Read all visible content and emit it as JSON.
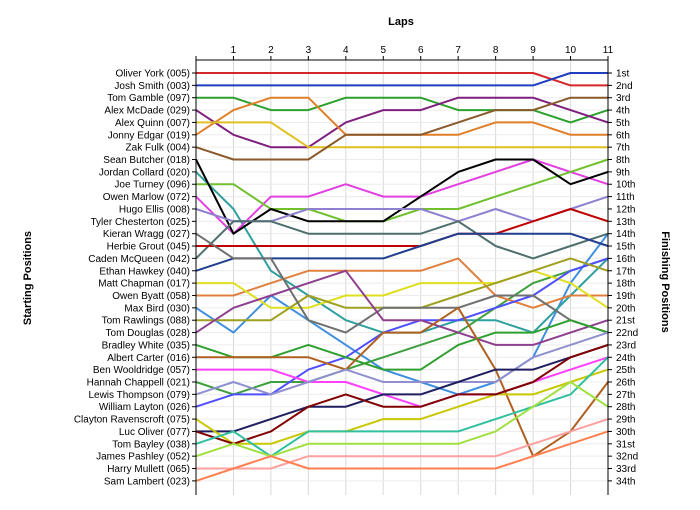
{
  "chart_data": {
    "type": "line",
    "title": "",
    "xlabel": "Laps",
    "ylabel_left": "Starting Positions",
    "ylabel_right": "Finishing Positions",
    "x": [
      0,
      1,
      2,
      3,
      4,
      5,
      6,
      7,
      8,
      9,
      10,
      11
    ],
    "x_tick_labels": [
      "1",
      "2",
      "3",
      "4",
      "5",
      "6",
      "7",
      "8",
      "9",
      "10",
      "11"
    ],
    "ylim": [
      1,
      34
    ],
    "grid": true,
    "starting_labels": [
      "Oliver York (005)",
      "Josh Smith (003)",
      "Tom Gamble (097)",
      "Alex McDade (029)",
      "Alex Quinn (007)",
      "Jonny Edgar (019)",
      "Zak Fulk (004)",
      "Sean Butcher (018)",
      "Jordan Collard (020)",
      "Joe Turney (096)",
      "Owen Marlow (072)",
      "Hugo Ellis (008)",
      "Tyler Chesterton (025)",
      "Kieran Wragg (027)",
      "Herbie Grout (045)",
      "Caden McQueen (042)",
      "Ethan Hawkey (040)",
      "Matt Chapman (017)",
      "Owen Byatt (058)",
      "Max Bird (030)",
      "Tom Rawlings (088)",
      "Tom Douglas (028)",
      "Bradley White (035)",
      "Albert Carter (016)",
      "Ben Wooldridge (057)",
      "Hannah Chappell (021)",
      "Lewis Thompson (079)",
      "William Layton (026)",
      "Clayton Ravenscroft (075)",
      "Luc Oliver (077)",
      "Tom Bayley (038)",
      "James Pashley (052)",
      "Harry Mullett (065)",
      "Sam Lambert (023)"
    ],
    "finishing_labels": [
      "1st",
      "2nd",
      "3rd",
      "4th",
      "5th",
      "6th",
      "7th",
      "8th",
      "9th",
      "10th",
      "11th",
      "12th",
      "13th",
      "14th",
      "15th",
      "16th",
      "17th",
      "18th",
      "19th",
      "20th",
      "21st",
      "22nd",
      "23rd",
      "24th",
      "25th",
      "26th",
      "27th",
      "28th",
      "29th",
      "30th",
      "31st",
      "32nd",
      "33rd",
      "34th"
    ],
    "series": [
      {
        "color": "#d62728",
        "values": [
          1,
          1,
          1,
          1,
          1,
          1,
          1,
          1,
          1,
          1,
          2,
          2
        ]
      },
      {
        "color": "#1f3fbf",
        "values": [
          2,
          2,
          2,
          2,
          2,
          2,
          2,
          2,
          2,
          2,
          1,
          1
        ]
      },
      {
        "color": "#2ca02c",
        "values": [
          3,
          3,
          4,
          4,
          3,
          3,
          3,
          4,
          4,
          4,
          5,
          4
        ]
      },
      {
        "color": "#7f1f7f",
        "values": [
          4,
          6,
          7,
          7,
          5,
          4,
          4,
          3,
          3,
          3,
          4,
          5
        ]
      },
      {
        "color": "#e07f2a",
        "values": [
          6,
          4,
          3,
          3,
          6,
          6,
          6,
          6,
          5,
          5,
          6,
          6
        ]
      },
      {
        "color": "#e0c020",
        "values": [
          5,
          5,
          5,
          7,
          7,
          7,
          7,
          7,
          7,
          7,
          7,
          7
        ]
      },
      {
        "color": "#3f8fdf",
        "values": [
          20,
          22,
          19,
          21,
          23,
          25,
          26,
          27,
          26,
          24,
          18,
          14
        ]
      },
      {
        "color": "#8b5a2b",
        "values": [
          7,
          8,
          8,
          8,
          6,
          6,
          6,
          5,
          4,
          4,
          3,
          3
        ]
      },
      {
        "color": "#2f9f9f",
        "values": [
          9,
          12,
          17,
          19,
          21,
          22,
          22,
          21,
          21,
          22,
          19,
          16
        ]
      },
      {
        "color": "#e040e0",
        "values": [
          11,
          14,
          11,
          11,
          10,
          11,
          11,
          10,
          9,
          8,
          9,
          10
        ]
      },
      {
        "color": "#70c030",
        "values": [
          10,
          10,
          12,
          12,
          13,
          13,
          12,
          12,
          11,
          10,
          9,
          8
        ]
      },
      {
        "color": "#000000",
        "values": [
          8,
          14,
          12,
          13,
          13,
          13,
          11,
          9,
          8,
          8,
          10,
          9
        ]
      },
      {
        "color": "#9080d0",
        "values": [
          12,
          13,
          13,
          12,
          12,
          12,
          12,
          13,
          12,
          13,
          12,
          11
        ]
      },
      {
        "color": "#4f6f6f",
        "values": [
          16,
          13,
          13,
          14,
          14,
          14,
          14,
          13,
          15,
          16,
          15,
          14
        ]
      },
      {
        "color": "#c00000",
        "values": [
          15,
          15,
          15,
          15,
          15,
          15,
          15,
          14,
          14,
          13,
          12,
          13
        ]
      },
      {
        "color": "#1f3f8f",
        "values": [
          17,
          16,
          16,
          16,
          16,
          16,
          15,
          14,
          14,
          14,
          14,
          15
        ]
      },
      {
        "color": "#3f9f3f",
        "values": [
          26,
          27,
          26,
          26,
          25,
          24,
          23,
          22,
          20,
          18,
          17,
          16
        ]
      },
      {
        "color": "#e08040",
        "values": [
          19,
          19,
          18,
          17,
          17,
          17,
          17,
          16,
          19,
          20,
          19,
          19
        ]
      },
      {
        "color": "#dfdf20",
        "values": [
          18,
          18,
          20,
          20,
          19,
          19,
          18,
          18,
          18,
          17,
          18,
          20
        ]
      },
      {
        "color": "#4f4fff",
        "values": [
          28,
          27,
          27,
          25,
          24,
          22,
          21,
          21,
          20,
          19,
          17,
          16
        ]
      },
      {
        "color": "#a0a020",
        "values": [
          21,
          21,
          21,
          19,
          20,
          20,
          20,
          19,
          18,
          17,
          16,
          17
        ]
      },
      {
        "color": "#707070",
        "values": [
          14,
          16,
          16,
          21,
          22,
          20,
          20,
          20,
          19,
          19,
          21,
          22
        ]
      },
      {
        "color": "#8f3f8f",
        "values": [
          22,
          20,
          19,
          18,
          17,
          21,
          21,
          22,
          23,
          23,
          22,
          21
        ]
      },
      {
        "color": "#2fa02f",
        "values": [
          23,
          24,
          24,
          23,
          24,
          25,
          25,
          23,
          22,
          22,
          21,
          22
        ]
      },
      {
        "color": "#b06020",
        "values": [
          24,
          24,
          24,
          24,
          25,
          22,
          22,
          20,
          25,
          32,
          30,
          26
        ]
      },
      {
        "color": "#ff40ff",
        "values": [
          25,
          25,
          25,
          26,
          26,
          27,
          28,
          27,
          27,
          26,
          25,
          24
        ]
      },
      {
        "color": "#9090d0",
        "values": [
          27,
          26,
          27,
          26,
          25,
          26,
          26,
          26,
          26,
          24,
          23,
          22
        ]
      },
      {
        "color": "#1f1f5f",
        "values": [
          30,
          30,
          29,
          28,
          28,
          27,
          27,
          26,
          25,
          25,
          24,
          23
        ]
      },
      {
        "color": "#c8c800",
        "values": [
          29,
          31,
          31,
          30,
          30,
          29,
          29,
          28,
          27,
          27,
          26,
          25
        ]
      },
      {
        "color": "#800000",
        "values": [
          30,
          31,
          30,
          28,
          27,
          28,
          28,
          27,
          27,
          26,
          24,
          23
        ]
      },
      {
        "color": "#30c0a0",
        "values": [
          31,
          30,
          32,
          30,
          30,
          30,
          30,
          30,
          29,
          28,
          27,
          24
        ]
      },
      {
        "color": "#a0e040",
        "values": [
          32,
          31,
          32,
          31,
          31,
          31,
          31,
          31,
          30,
          28,
          26,
          28
        ]
      },
      {
        "color": "#ffa0a0",
        "values": [
          33,
          33,
          33,
          32,
          32,
          32,
          32,
          32,
          32,
          31,
          30,
          29
        ]
      },
      {
        "color": "#ff7f50",
        "values": [
          34,
          33,
          32,
          33,
          33,
          33,
          33,
          33,
          33,
          32,
          31,
          30
        ]
      }
    ]
  }
}
